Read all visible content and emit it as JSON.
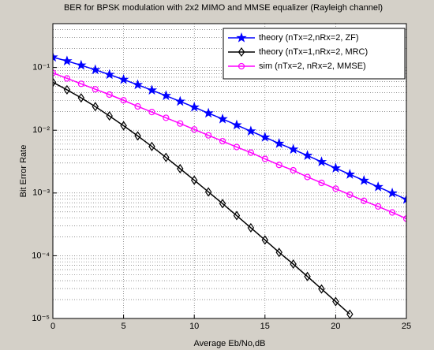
{
  "chart_data": {
    "type": "line",
    "title": "BER for BPSK modulation with 2x2 MIMO and MMSE equalizer (Rayleigh channel)",
    "x_label": "Average Eb/No,dB",
    "y_label": "Bit Error Rate",
    "x": [
      0,
      1,
      2,
      3,
      4,
      5,
      6,
      7,
      8,
      9,
      10,
      11,
      12,
      13,
      14,
      15,
      16,
      17,
      18,
      19,
      20,
      21,
      22,
      23,
      24,
      25
    ],
    "series": [
      {
        "name": "theory (nTx=2,nRx=2, ZF)",
        "color": "#0000ff",
        "marker": "star",
        "values": [
          0.146,
          0.127,
          0.1085,
          0.0919,
          0.0771,
          0.0642,
          0.053,
          0.0435,
          0.0355,
          0.0288,
          0.0233,
          0.0187,
          0.0151,
          0.0121,
          0.00967,
          0.00773,
          0.00614,
          0.00496,
          0.00395,
          0.00314,
          0.00249,
          0.00198,
          0.00158,
          0.00125,
          0.000995,
          0.00079
        ]
      },
      {
        "name": "theory (nTx=1,nRx=2, MRC)",
        "color": "#000000",
        "marker": "diamond",
        "values": [
          0.058,
          0.0441,
          0.0328,
          0.0238,
          0.0169,
          0.0118,
          0.00813,
          0.00551,
          0.00369,
          0.00244,
          0.0016,
          0.00104,
          0.000677,
          0.000436,
          0.000279,
          0.000178,
          0.000113,
          7.36e-05,
          4.67e-05,
          2.95e-05,
          1.86e-05,
          1.17e-05,
          null,
          null,
          null,
          null
        ]
      },
      {
        "name": "sim (nTx=2, nRx=2, MMSE)",
        "color": "#ff00ff",
        "marker": "circle",
        "values": [
          0.082,
          0.067,
          0.055,
          0.045,
          0.037,
          0.03,
          0.024,
          0.0195,
          0.0158,
          0.0128,
          0.0103,
          0.0083,
          0.0067,
          0.0054,
          0.0044,
          0.0035,
          0.0028,
          0.0023,
          0.0018,
          0.00145,
          0.00117,
          0.00094,
          0.00075,
          0.00061,
          0.00049,
          0.00039
        ]
      }
    ],
    "xlim": [
      0,
      25
    ],
    "xticks": [
      0,
      5,
      10,
      15,
      20,
      25
    ],
    "ylim": [
      1e-05,
      0.5
    ],
    "log_y": true,
    "yticks": [
      {
        "value": 1e-05,
        "label": "10⁻⁵"
      },
      {
        "value": 0.0001,
        "label": "10⁻⁴"
      },
      {
        "value": 0.001,
        "label": "10⁻³"
      },
      {
        "value": 0.01,
        "label": "10⁻²"
      },
      {
        "value": 0.1,
        "label": "10⁻¹"
      }
    ],
    "grid": true,
    "minor_grid": true,
    "legend": "upper right"
  }
}
